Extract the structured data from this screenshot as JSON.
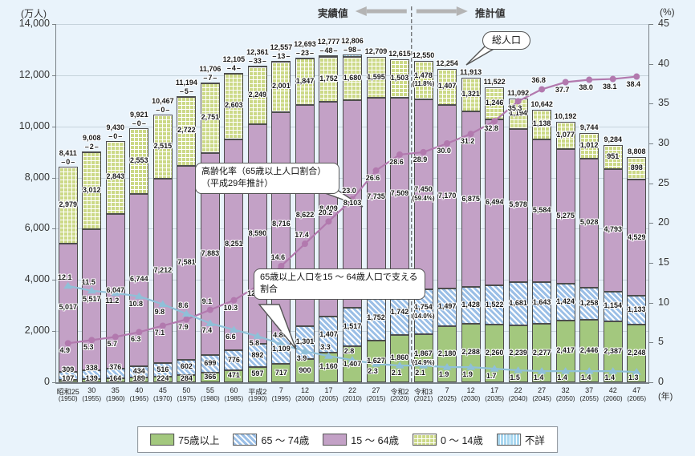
{
  "header": {
    "actual_label": "実績値",
    "projection_label": "推計値",
    "total_pop_label": "総人口"
  },
  "axes": {
    "left_unit": "(万人)",
    "right_unit": "(%)",
    "year_unit": "(年)",
    "left_ticks": [
      14000,
      12000,
      10000,
      8000,
      6000,
      4000,
      2000,
      0
    ],
    "right_ticks": [
      45,
      40,
      35,
      30,
      25,
      20,
      15,
      10,
      5,
      0
    ]
  },
  "callouts": {
    "aging_rate": "高齢化率（65歳以上人口割合）（平成29年推計）",
    "support_ratio": "65歳以上人口を15 〜 64歳人口で支える割合"
  },
  "legend": {
    "items": [
      {
        "label": "75歳以上",
        "swatch": "p75",
        "color": "#a3c87e"
      },
      {
        "label": "65 〜 74歳",
        "swatch": "p65",
        "color": "#9bbfe6"
      },
      {
        "label": "15 〜 64歳",
        "swatch": "p15",
        "color": "#c3a1c6"
      },
      {
        "label": "0 〜 14歳",
        "swatch": "p0",
        "color": "#ccd987"
      },
      {
        "label": "不詳",
        "swatch": "unk",
        "color": "#a9d7f0"
      }
    ]
  },
  "colors": {
    "background": "#e9f3fb",
    "gridline": "#c6d3dc",
    "axis": "#7a8288",
    "bar_75plus": "#a3c87e",
    "bar_65_74": "#9bbfe6",
    "bar_15_64": "#c3a1c6",
    "bar_0_14": "#ccd987",
    "bar_unknown": "#a9d7f0",
    "line_aging_rate": "#b279ae",
    "line_support_ratio": "#8fc0d8"
  },
  "chart_data": {
    "type": "bar",
    "subtype": "stacked-bars-with-two-percentage-lines",
    "title": "",
    "ylabel_left": "(万人)",
    "ylabel_right": "(%)",
    "ylim_left": [
      0,
      14000
    ],
    "ylim_right": [
      0,
      45
    ],
    "grid": true,
    "divider_between": [
      "令和2 (2020)",
      "令和3 (2021)"
    ],
    "categories_era": [
      "昭和25",
      "30",
      "35",
      "40",
      "45",
      "50",
      "55",
      "60",
      "平成2",
      "7",
      "12",
      "17",
      "22",
      "27",
      "令和2",
      "令和3",
      "7",
      "12",
      "17",
      "22",
      "27",
      "32",
      "37",
      "42",
      "47"
    ],
    "categories_year": [
      "(1950)",
      "(1955)",
      "(1960)",
      "(1965)",
      "(1970)",
      "(1975)",
      "(1980)",
      "(1985)",
      "(1990)",
      "(1995)",
      "(2000)",
      "(2005)",
      "(2010)",
      "(2015)",
      "(2020)",
      "(2021)",
      "(2025)",
      "(2030)",
      "(2035)",
      "(2040)",
      "(2045)",
      "(2050)",
      "(2055)",
      "(2060)",
      "(2065)"
    ],
    "series": [
      {
        "key": "p75",
        "name": "75歳以上",
        "values": [
          107,
          139,
          164,
          189,
          224,
          284,
          366,
          471,
          597,
          717,
          900,
          1160,
          1407,
          1627,
          1860,
          1867,
          2180,
          2288,
          2260,
          2239,
          2277,
          2417,
          2446,
          2387,
          2248
        ]
      },
      {
        "key": "p65",
        "name": "65〜74歳",
        "values": [
          309,
          338,
          376,
          434,
          516,
          602,
          699,
          776,
          892,
          1109,
          1301,
          1407,
          1517,
          1752,
          1742,
          1754,
          1497,
          1428,
          1522,
          1681,
          1643,
          1424,
          1258,
          1154,
          1133
        ]
      },
      {
        "key": "p15",
        "name": "15〜64歳",
        "values": [
          5017,
          5517,
          6047,
          6744,
          7212,
          7581,
          7883,
          8251,
          8590,
          8716,
          8622,
          8409,
          8103,
          7735,
          7509,
          7450,
          7170,
          6875,
          6494,
          5978,
          5584,
          5275,
          5028,
          4793,
          4529
        ]
      },
      {
        "key": "p0",
        "name": "0〜14歳",
        "values": [
          2979,
          3012,
          2843,
          2553,
          2515,
          2722,
          2751,
          2603,
          2249,
          2001,
          1847,
          1752,
          1680,
          1595,
          1503,
          1478,
          1407,
          1321,
          1246,
          1194,
          1138,
          1077,
          1012,
          951,
          898
        ]
      },
      {
        "key": "unk",
        "name": "不詳",
        "values": [
          0,
          2,
          0,
          0,
          0,
          5,
          7,
          4,
          33,
          13,
          23,
          48,
          98,
          0,
          0,
          0,
          0,
          0,
          0,
          0,
          0,
          0,
          0,
          0,
          0
        ]
      }
    ],
    "totals": [
      8411,
      9008,
      9430,
      9921,
      10467,
      11194,
      11706,
      12105,
      12361,
      12557,
      12693,
      12777,
      12806,
      12709,
      12615,
      12550,
      12254,
      11913,
      11522,
      11092,
      10642,
      10192,
      9744,
      9284,
      8808
    ],
    "unknown_label_count": 13,
    "pct_notes_2021": {
      "p0": "(11.8%)",
      "p15": "(59.4%)",
      "p65": "(14.0%)",
      "p75": "(14.9%)"
    },
    "lines": [
      {
        "key": "aging",
        "name": "高齢化率（65歳以上人口割合）（平成29年推計）",
        "marker": "circle",
        "color": "#b279ae",
        "values": [
          4.9,
          5.3,
          5.7,
          6.3,
          7.1,
          7.9,
          9.1,
          10.3,
          12.1,
          14.6,
          17.4,
          20.2,
          23.0,
          26.6,
          28.6,
          28.9,
          30.0,
          31.2,
          32.8,
          35.3,
          36.8,
          37.7,
          38.0,
          38.1,
          38.4
        ],
        "label_pos": [
          "b",
          "b",
          "b",
          "b",
          "b",
          "b",
          "a",
          "b",
          "b",
          "a",
          "a",
          "a",
          "a",
          "b",
          "b",
          "b",
          "b",
          "b",
          "b",
          "b",
          "a",
          "b",
          "b",
          "b",
          "b"
        ]
      },
      {
        "key": "support",
        "name": "65歳以上人口を15〜64歳人口で支える割合",
        "marker": "triangle",
        "color": "#8fc0d8",
        "values": [
          12.1,
          11.5,
          11.2,
          10.8,
          9.8,
          8.6,
          7.4,
          6.6,
          5.8,
          4.8,
          3.9,
          3.3,
          2.8,
          2.3,
          2.1,
          2.1,
          1.9,
          1.9,
          1.7,
          1.5,
          1.4,
          1.4,
          1.4,
          1.4,
          1.3
        ],
        "label_pos": [
          "a",
          "a",
          "b",
          "b",
          "b",
          "a",
          "b",
          "b",
          "b",
          "a",
          "b",
          "a",
          "a",
          "b",
          "b",
          "b",
          "b",
          "b",
          "b",
          "b",
          "b",
          "b",
          "b",
          "b",
          "b"
        ]
      }
    ],
    "legend_position": "bottom"
  }
}
